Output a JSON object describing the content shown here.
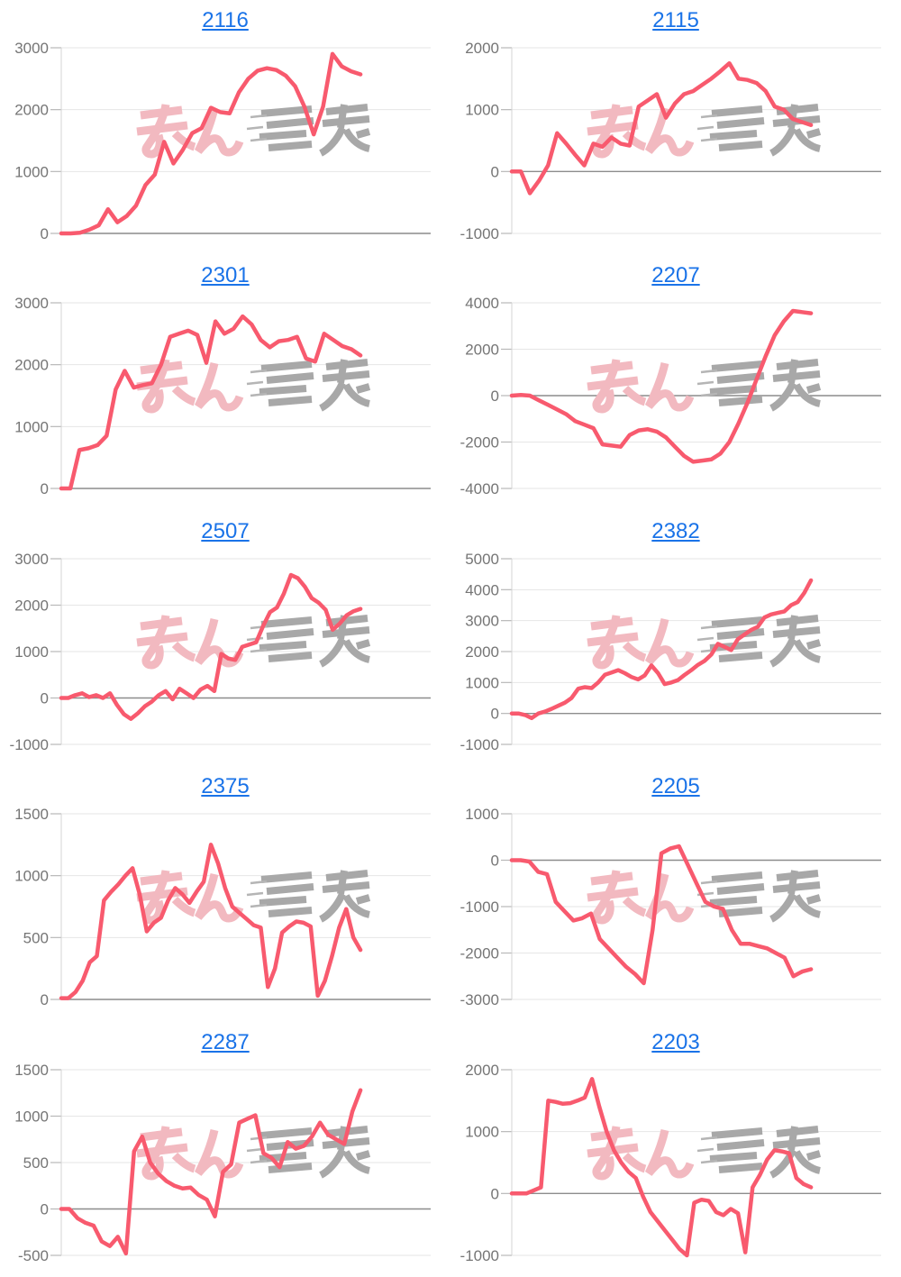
{
  "page": {
    "background": "#ffffff"
  },
  "style": {
    "line_color": "#f85a6e",
    "link_color": "#1a73e8",
    "grid_color": "#e6e6e6",
    "baseline_color": "#8c8c8c",
    "axis_line_color": "#d4d4d4",
    "tick_color": "#b8b8b8",
    "axis_label_color": "#757575",
    "watermark_pink": "#f2b9c0",
    "watermark_gray": "#a8a8a8"
  },
  "watermark": {
    "label": "みんかぶ logo watermark"
  },
  "chart_data": [
    {
      "type": "line",
      "title": "2116",
      "ylim": [
        0,
        3000
      ],
      "yticks": [
        3000,
        2000,
        1000,
        0
      ],
      "values": [
        0,
        0,
        10,
        60,
        130,
        390,
        180,
        280,
        450,
        780,
        950,
        1480,
        1130,
        1350,
        1620,
        1700,
        2030,
        1960,
        1940,
        2280,
        2500,
        2630,
        2670,
        2640,
        2550,
        2380,
        2050,
        1600,
        2050,
        2900,
        2700,
        2620,
        2570
      ]
    },
    {
      "type": "line",
      "title": "2115",
      "ylim": [
        -1000,
        2000
      ],
      "yticks": [
        2000,
        1000,
        0,
        -1000
      ],
      "values": [
        0,
        0,
        -350,
        -150,
        100,
        620,
        450,
        270,
        100,
        450,
        400,
        550,
        450,
        420,
        1050,
        1150,
        1250,
        870,
        1100,
        1250,
        1300,
        1400,
        1500,
        1620,
        1750,
        1500,
        1480,
        1430,
        1300,
        1050,
        1000,
        850,
        800,
        750
      ]
    },
    {
      "type": "line",
      "title": "2301",
      "ylim": [
        0,
        3000
      ],
      "yticks": [
        3000,
        2000,
        1000,
        0
      ],
      "values": [
        0,
        0,
        620,
        650,
        700,
        850,
        1600,
        1900,
        1630,
        1670,
        1700,
        2000,
        2450,
        2500,
        2550,
        2480,
        2030,
        2700,
        2500,
        2580,
        2780,
        2650,
        2400,
        2280,
        2380,
        2400,
        2450,
        2100,
        2050,
        2500,
        2400,
        2300,
        2250,
        2150
      ]
    },
    {
      "type": "line",
      "title": "2207",
      "ylim": [
        -4000,
        4000
      ],
      "yticks": [
        4000,
        2000,
        0,
        -2000,
        -4000
      ],
      "values": [
        0,
        30,
        0,
        -200,
        -400,
        -600,
        -800,
        -1100,
        -1250,
        -1400,
        -2100,
        -2150,
        -2200,
        -1700,
        -1500,
        -1450,
        -1550,
        -1800,
        -2200,
        -2600,
        -2850,
        -2800,
        -2750,
        -2500,
        -2000,
        -1200,
        -300,
        700,
        1700,
        2600,
        3200,
        3650,
        3600,
        3550
      ]
    },
    {
      "type": "line",
      "title": "2507",
      "ylim": [
        -1000,
        3000
      ],
      "yticks": [
        3000,
        2000,
        1000,
        0,
        -1000
      ],
      "values": [
        0,
        0,
        60,
        100,
        20,
        60,
        0,
        100,
        -150,
        -350,
        -450,
        -330,
        -180,
        -80,
        60,
        150,
        -30,
        200,
        100,
        0,
        180,
        260,
        150,
        950,
        850,
        820,
        1100,
        1150,
        1200,
        1550,
        1850,
        1950,
        2250,
        2650,
        2580,
        2400,
        2150,
        2050,
        1900,
        1470,
        1600,
        1780,
        1870,
        1920
      ]
    },
    {
      "type": "line",
      "title": "2382",
      "ylim": [
        -1000,
        5000
      ],
      "yticks": [
        5000,
        4000,
        3000,
        2000,
        1000,
        0,
        -1000
      ],
      "values": [
        0,
        0,
        -50,
        -150,
        0,
        60,
        150,
        250,
        350,
        500,
        800,
        850,
        820,
        1000,
        1250,
        1320,
        1400,
        1300,
        1180,
        1100,
        1230,
        1550,
        1300,
        950,
        1000,
        1080,
        1250,
        1400,
        1570,
        1700,
        1900,
        2250,
        2150,
        2050,
        2400,
        2550,
        2700,
        2800,
        3100,
        3200,
        3250,
        3300,
        3500,
        3600,
        3900,
        4300
      ]
    },
    {
      "type": "line",
      "title": "2375",
      "ylim": [
        0,
        1500
      ],
      "yticks": [
        1500,
        1000,
        500,
        0
      ],
      "values": [
        10,
        10,
        60,
        150,
        300,
        350,
        800,
        870,
        930,
        1000,
        1060,
        850,
        550,
        620,
        660,
        800,
        900,
        850,
        780,
        870,
        950,
        1250,
        1100,
        900,
        750,
        700,
        650,
        600,
        580,
        100,
        250,
        540,
        590,
        630,
        620,
        590,
        30,
        150,
        350,
        580,
        730,
        500,
        400
      ]
    },
    {
      "type": "line",
      "title": "2205",
      "ylim": [
        -3000,
        1000
      ],
      "yticks": [
        1000,
        0,
        -1000,
        -2000,
        -3000
      ],
      "values": [
        0,
        0,
        -30,
        -250,
        -300,
        -900,
        -1100,
        -1300,
        -1250,
        -1150,
        -1700,
        -1900,
        -2100,
        -2300,
        -2450,
        -2650,
        -1500,
        150,
        250,
        300,
        -100,
        -500,
        -900,
        -1000,
        -1050,
        -1500,
        -1800,
        -1800,
        -1850,
        -1900,
        -2000,
        -2100,
        -2500,
        -2400,
        -2350
      ]
    },
    {
      "type": "line",
      "title": "2287",
      "ylim": [
        -500,
        1500
      ],
      "yticks": [
        1500,
        1000,
        500,
        0,
        -500
      ],
      "values": [
        0,
        0,
        -100,
        -150,
        -180,
        -350,
        -400,
        -300,
        -480,
        620,
        780,
        500,
        380,
        300,
        250,
        220,
        230,
        150,
        100,
        -80,
        400,
        480,
        930,
        970,
        1010,
        600,
        550,
        450,
        720,
        650,
        680,
        780,
        930,
        800,
        750,
        700,
        1050,
        1280
      ]
    },
    {
      "type": "line",
      "title": "2203",
      "ylim": [
        -1000,
        2000
      ],
      "yticks": [
        2000,
        1000,
        0,
        -1000
      ],
      "values": [
        0,
        0,
        0,
        50,
        100,
        1500,
        1480,
        1450,
        1460,
        1500,
        1550,
        1850,
        1400,
        1000,
        700,
        500,
        350,
        250,
        -50,
        -300,
        -450,
        -600,
        -750,
        -900,
        -1000,
        -150,
        -100,
        -120,
        -300,
        -350,
        -250,
        -320,
        -950,
        100,
        300,
        550,
        700,
        680,
        650,
        250,
        150,
        100
      ]
    }
  ]
}
